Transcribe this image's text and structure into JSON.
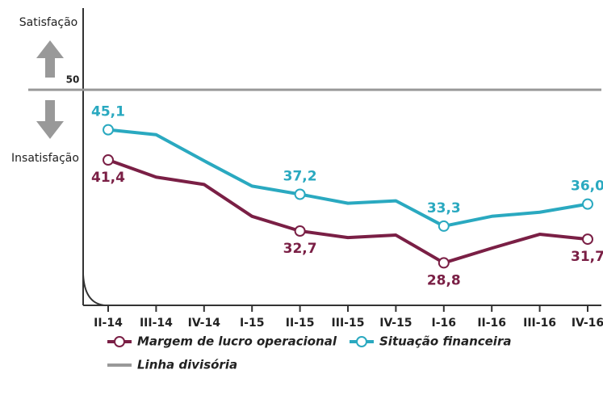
{
  "chart_data": {
    "type": "line",
    "annotations": {
      "top": "Satisfação",
      "bottom": "Insatisfação"
    },
    "categories": [
      "II-14",
      "III-14",
      "IV-14",
      "I-15",
      "II-15",
      "III-15",
      "IV-15",
      "I-16",
      "II-16",
      "III-16",
      "IV-16"
    ],
    "series": [
      {
        "name": "Margem de lucro operacional",
        "color": "#7a1f45",
        "values": [
          41.4,
          39.3,
          38.4,
          34.5,
          32.7,
          31.9,
          32.2,
          28.8,
          30.6,
          32.3,
          31.7
        ],
        "value_labels": [
          "41,4",
          null,
          null,
          null,
          "32,7",
          null,
          null,
          "28,8",
          null,
          null,
          "31,7"
        ]
      },
      {
        "name": "Situação financeira",
        "color": "#2aa9c0",
        "values": [
          45.1,
          44.5,
          41.3,
          38.2,
          37.2,
          36.1,
          36.4,
          33.3,
          34.5,
          35.0,
          36.0
        ],
        "value_labels": [
          "45,1",
          null,
          null,
          null,
          "37,2",
          null,
          null,
          "33,3",
          null,
          null,
          "36,0"
        ]
      }
    ],
    "divider": {
      "name": "Linha divisória",
      "color": "#999999"
    },
    "ylim": [
      23.6,
      60
    ],
    "yticks": [
      50
    ]
  }
}
